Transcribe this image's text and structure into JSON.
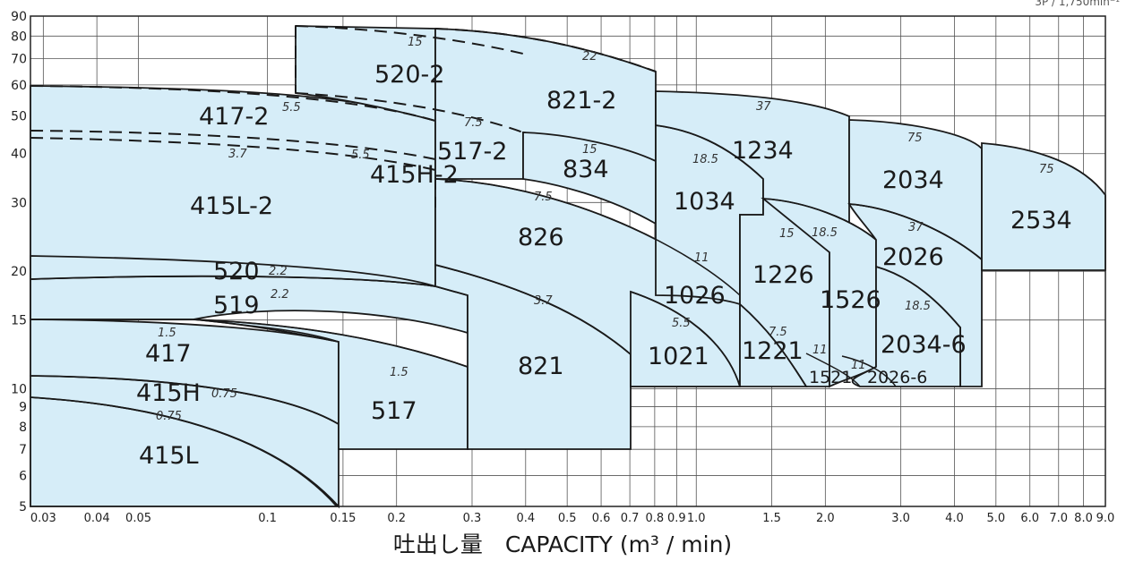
{
  "chart_data": {
    "type": "area",
    "title": "",
    "corner_note": "3P / 1,750min⁻¹",
    "xlabel": "吐出し量　CAPACITY (m³ / min)",
    "ylabel": "",
    "x_scale": "log",
    "y_scale": "log",
    "xlim": [
      0.028,
      9.0
    ],
    "ylim": [
      5,
      90
    ],
    "x_ticks": [
      0.03,
      0.04,
      0.05,
      0.1,
      0.15,
      0.2,
      0.3,
      0.4,
      0.5,
      0.6,
      0.7,
      0.8,
      0.9,
      1.0,
      1.5,
      2.0,
      3.0,
      4.0,
      5.0,
      6.0,
      7.0,
      8.0,
      9.0
    ],
    "x_tick_labels": [
      "0.03",
      "0.04",
      "0.05",
      "0.1",
      "0.15",
      "0.2",
      "0.3",
      "0.4",
      "0.5",
      "0.6",
      "0.7",
      "0.8",
      "0.9",
      "1.0",
      "1.5",
      "2.0",
      "3.0",
      "4.0",
      "5.0",
      "6.0",
      "7.0",
      "8.0",
      "9.0"
    ],
    "y_ticks": [
      5,
      6,
      7,
      8,
      9,
      10,
      15,
      20,
      30,
      40,
      50,
      60,
      70,
      80,
      90
    ],
    "grid": true,
    "regions": [
      {
        "name": "415L",
        "x": 0.05,
        "y": 6.5
      },
      {
        "name": "415H",
        "x": 0.045,
        "y": 10.2
      },
      {
        "name": "417",
        "x": 0.053,
        "y": 12.5
      },
      {
        "name": "415L-2",
        "x": 0.078,
        "y": 30
      },
      {
        "name": "417-2",
        "x": 0.078,
        "y": 51
      },
      {
        "name": "520",
        "x": 0.088,
        "y": 19.8
      },
      {
        "name": "519",
        "x": 0.088,
        "y": 16.8
      },
      {
        "name": "517",
        "x": 0.2,
        "y": 8.8
      },
      {
        "name": "520-2",
        "x": 0.2,
        "y": 67
      },
      {
        "name": "415H-2",
        "x": 0.235,
        "y": 38
      },
      {
        "name": "517-2",
        "x": 0.325,
        "y": 41
      },
      {
        "name": "821",
        "x": 0.5,
        "y": 11
      },
      {
        "name": "826",
        "x": 0.5,
        "y": 24.5
      },
      {
        "name": "834",
        "x": 0.55,
        "y": 38
      },
      {
        "name": "821-2",
        "x": 0.55,
        "y": 53
      },
      {
        "name": "1021",
        "x": 0.95,
        "y": 12.1
      },
      {
        "name": "1026",
        "x": 1.0,
        "y": 17
      },
      {
        "name": "1034",
        "x": 1.0,
        "y": 31
      },
      {
        "name": "1234",
        "x": 1.35,
        "y": 42
      },
      {
        "name": "1221",
        "x": 1.47,
        "y": 12.4
      },
      {
        "name": "1226",
        "x": 1.6,
        "y": 19
      },
      {
        "name": "1521",
        "x": 2.0,
        "y": 10.8
      },
      {
        "name": "1526",
        "x": 2.2,
        "y": 16.5
      },
      {
        "name": "2026-6",
        "x": 2.75,
        "y": 10.8
      },
      {
        "name": "2034-6",
        "x": 3.3,
        "y": 12.7
      },
      {
        "name": "2026",
        "x": 3.1,
        "y": 22.5
      },
      {
        "name": "2034",
        "x": 3.1,
        "y": 36
      },
      {
        "name": "2534",
        "x": 6.0,
        "y": 28.5
      }
    ],
    "motor_kw_labels": [
      "0.75",
      "0.75",
      "1.5",
      "2.2",
      "2.2",
      "3.7",
      "5.5",
      "5.5",
      "15",
      "7.5",
      "15",
      "22",
      "1.5",
      "3.7",
      "7.5",
      "11",
      "5.5",
      "18.5",
      "37",
      "15",
      "18.5",
      "7.5",
      "11",
      "11",
      "37",
      "18.5",
      "75",
      "75"
    ]
  }
}
